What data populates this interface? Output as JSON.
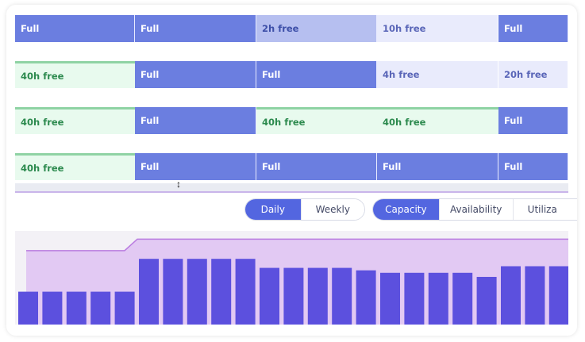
{
  "schedule": {
    "rows": [
      [
        {
          "label": "Full",
          "state": "full"
        },
        {
          "label": "Full",
          "state": "full"
        },
        {
          "label": "2h free",
          "state": "partial"
        },
        {
          "label": "10h free",
          "state": "light"
        },
        {
          "label": "Full",
          "state": "full"
        }
      ],
      [
        {
          "label": "40h free",
          "state": "free"
        },
        {
          "label": "Full",
          "state": "full"
        },
        {
          "label": "Full",
          "state": "full"
        },
        {
          "label": "4h free",
          "state": "light"
        },
        {
          "label": "20h free",
          "state": "light"
        }
      ],
      [
        {
          "label": "40h free",
          "state": "free"
        },
        {
          "label": "Full",
          "state": "full"
        },
        {
          "label": "40h free",
          "state": "free"
        },
        {
          "label": "40h free",
          "state": "free"
        },
        {
          "label": "Full",
          "state": "full"
        }
      ],
      [
        {
          "label": "40h free",
          "state": "free"
        },
        {
          "label": "Full",
          "state": "full"
        },
        {
          "label": "Full",
          "state": "full"
        },
        {
          "label": "Full",
          "state": "full"
        },
        {
          "label": "Full",
          "state": "full"
        }
      ]
    ]
  },
  "period_toggle": {
    "options": [
      "Daily",
      "Weekly"
    ],
    "selected": "Daily"
  },
  "metric_toggle": {
    "options": [
      "Capacity",
      "Availability",
      "Utiliza"
    ],
    "selected": "Capacity"
  },
  "colors": {
    "full": "#6b7ee0",
    "free": "#e8faee",
    "accent": "#5366e0",
    "bar": "#5c50de",
    "capacity_area": "#e2c9f3",
    "capacity_line": "#b97be0"
  },
  "chart_data": {
    "type": "bar",
    "values": [
      40,
      40,
      40,
      40,
      40,
      80,
      80,
      80,
      80,
      80,
      69,
      69,
      69,
      69,
      66,
      63,
      63,
      63,
      63,
      58,
      71,
      71,
      71
    ],
    "capacity": [
      90,
      90,
      90,
      90,
      90,
      104,
      104,
      104,
      104,
      104,
      104,
      104,
      104,
      104,
      104,
      104,
      104,
      104,
      104,
      104,
      104,
      104,
      104
    ],
    "ylim": [
      0,
      114
    ]
  }
}
